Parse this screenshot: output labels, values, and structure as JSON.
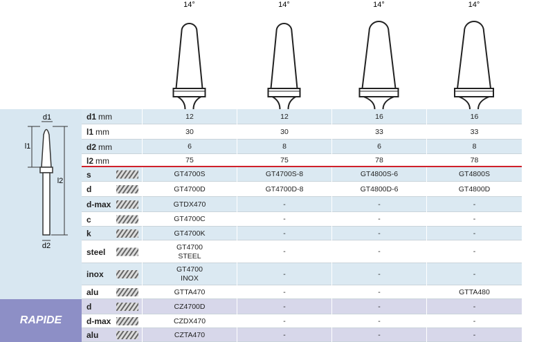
{
  "angles": [
    "14°",
    "14°",
    "14°",
    "14°"
  ],
  "diagram_labels": [
    "d1",
    "l1",
    "l2",
    "d2"
  ],
  "dimension_rows": [
    {
      "label": "d1",
      "unit": "mm",
      "values": [
        12,
        12,
        16,
        16
      ]
    },
    {
      "label": "l1",
      "unit": "mm",
      "values": [
        30,
        30,
        33,
        33
      ]
    },
    {
      "label": "d2",
      "unit": "mm",
      "values": [
        6,
        8,
        6,
        8
      ]
    },
    {
      "label": "l2",
      "unit": "mm",
      "values": [
        75,
        75,
        78,
        78
      ]
    }
  ],
  "cut_rows": [
    {
      "label": "s",
      "values": [
        "GT4700S",
        "GT4700S-8",
        "GT4800S-6",
        "GT4800S"
      ]
    },
    {
      "label": "d",
      "values": [
        "GT4700D",
        "GT4700D-8",
        "GT4800D-6",
        "GT4800D"
      ]
    },
    {
      "label": "d-max",
      "values": [
        "GTDX470",
        "-",
        "-",
        "-"
      ]
    },
    {
      "label": "c",
      "values": [
        "GT4700C",
        "-",
        "-",
        "-"
      ]
    },
    {
      "label": "k",
      "values": [
        "GT4700K",
        "-",
        "-",
        "-"
      ]
    },
    {
      "label": "steel",
      "values": [
        "GT4700\nSTEEL",
        "-",
        "-",
        "-"
      ]
    },
    {
      "label": "inox",
      "values": [
        "GT4700\nINOX",
        "-",
        "-",
        "-"
      ]
    },
    {
      "label": "alu",
      "values": [
        "GTTA470",
        "-",
        "-",
        "GTTA480"
      ]
    }
  ],
  "rapide": {
    "title": "RAPIDE",
    "rows": [
      {
        "label": "d",
        "values": [
          "CZ4700D",
          "-",
          "-",
          "-"
        ]
      },
      {
        "label": "d-max",
        "values": [
          "CZDX470",
          "-",
          "-",
          "-"
        ]
      },
      {
        "label": "alu",
        "values": [
          "CZTA470",
          "-",
          "-",
          "-"
        ]
      }
    ]
  }
}
